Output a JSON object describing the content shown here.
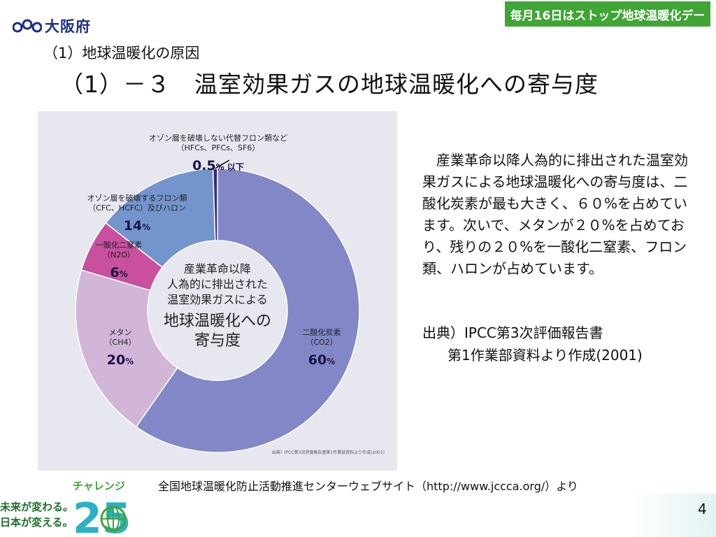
{
  "header": {
    "logo_text": "大阪府",
    "banner": "毎月16日はストップ地球温暖化デー",
    "subtitle": "（1）地球温暖化の原因",
    "title": "（1）－３　温室効果ガスの地球温暖化への寄与度"
  },
  "chart_data": {
    "type": "pie",
    "title_lines": [
      "産業革命以降",
      "人為的に排出された",
      "温室効果ガスによる",
      "地球温暖化への",
      "寄与度"
    ],
    "slices": [
      {
        "lines": [
          "二酸化炭素",
          "（CO2）"
        ],
        "value": 60,
        "value_label": "60",
        "unit": "%",
        "color": "#8287c8"
      },
      {
        "lines": [
          "メタン",
          "（CH4）"
        ],
        "value": 20,
        "value_label": "20",
        "unit": "%",
        "color": "#d2b6d8"
      },
      {
        "lines": [
          "一酸化二窒素",
          "（N2O）"
        ],
        "value": 6,
        "value_label": "6",
        "unit": "%",
        "color": "#c8509e"
      },
      {
        "lines": [
          "オゾン層を破壊するフロン類",
          "（CFC、HCFC）及びハロン"
        ],
        "value": 14,
        "value_label": "14",
        "unit": "%",
        "color": "#7494cc"
      },
      {
        "lines": [
          "オゾン層を破壊しない代替フロン類など",
          "（HFCs、PFCs、SF6）"
        ],
        "value": 0.5,
        "value_label": "0.5",
        "unit": "% 以下",
        "color": "#3a2a7a"
      }
    ],
    "source_note": "出典）IPCC第3次評価報告書第1作業部資料より作成(2001)"
  },
  "description": "産業革命以降人為的に排出された温室効果ガスによる地球温暖化への寄与度は、二酸化炭素が最も大きく、６０%を占めています。次いで、メタンが２０%を占めており、残りの２０%を一酸化二窒素、フロン類、ハロンが占めています。",
  "source": {
    "line1": "出典）IPCC第3次評価報告書",
    "line2": "第1作業部資料より作成(2001)"
  },
  "credit": "全国地球温暖化防止活動推進センターウェブサイト（http://www.jccca.org/）より",
  "footer": {
    "challenge_label": "チャレンジ",
    "challenge_number": "25",
    "slogan_line1": "未来が変わる。",
    "slogan_line2": "日本が変える。",
    "page_number": "4"
  }
}
